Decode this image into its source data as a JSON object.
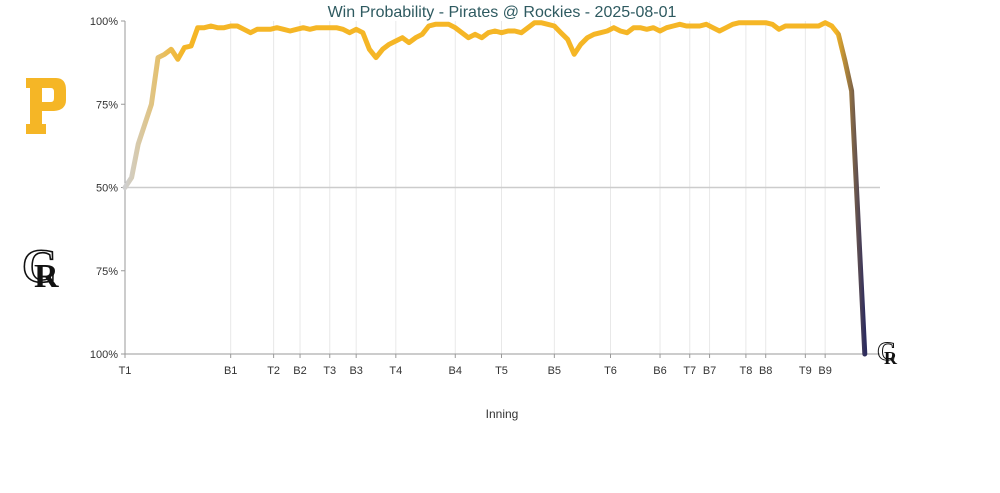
{
  "chart_data": {
    "type": "line",
    "title": "Win Probability - Pirates @ Rockies - 2025-08-01",
    "xlabel": "Inning",
    "ylabel": "",
    "y_axis_labels": [
      "100%",
      "75%",
      "50%",
      "75%",
      "100%"
    ],
    "ylim": [
      -50,
      50
    ],
    "grid": true,
    "x_ticks": [
      {
        "label": "T1",
        "x": 0
      },
      {
        "label": "B1",
        "x": 16
      },
      {
        "label": "T2",
        "x": 22.5
      },
      {
        "label": "B2",
        "x": 26.5
      },
      {
        "label": "T3",
        "x": 31
      },
      {
        "label": "B3",
        "x": 35
      },
      {
        "label": "T4",
        "x": 41
      },
      {
        "label": "B4",
        "x": 50
      },
      {
        "label": "T5",
        "x": 57
      },
      {
        "label": "B5",
        "x": 65
      },
      {
        "label": "T6",
        "x": 73.5
      },
      {
        "label": "B6",
        "x": 81
      },
      {
        "label": "T7",
        "x": 85.5
      },
      {
        "label": "B7",
        "x": 88.5
      },
      {
        "label": "T8",
        "x": 94
      },
      {
        "label": "B8",
        "x": 97
      },
      {
        "label": "T9",
        "x": 103
      },
      {
        "label": "B9",
        "x": 106
      }
    ],
    "x_max": 114,
    "series": [
      {
        "values": [
          [
            0,
            0
          ],
          [
            1,
            3
          ],
          [
            2,
            13
          ],
          [
            3,
            19
          ],
          [
            4,
            25
          ],
          [
            5,
            39
          ],
          [
            6,
            40
          ],
          [
            7,
            41.5
          ],
          [
            8,
            38.5
          ],
          [
            9,
            42
          ],
          [
            10,
            42.5
          ],
          [
            11,
            48
          ],
          [
            12,
            48
          ],
          [
            13,
            48.5
          ],
          [
            14,
            48
          ],
          [
            15,
            48
          ],
          [
            16,
            48.5
          ],
          [
            17,
            48.5
          ],
          [
            18,
            47.5
          ],
          [
            19,
            46.5
          ],
          [
            20,
            47.5
          ],
          [
            21,
            47.5
          ],
          [
            22,
            47.5
          ],
          [
            23,
            48
          ],
          [
            24,
            47.5
          ],
          [
            25,
            47
          ],
          [
            26,
            47.5
          ],
          [
            27,
            48
          ],
          [
            28,
            47.5
          ],
          [
            29,
            48
          ],
          [
            30,
            48
          ],
          [
            31,
            48
          ],
          [
            32,
            48
          ],
          [
            33,
            47.5
          ],
          [
            34,
            46.5
          ],
          [
            35,
            47.5
          ],
          [
            36,
            46.5
          ],
          [
            37,
            41.5
          ],
          [
            38,
            39
          ],
          [
            39,
            41.5
          ],
          [
            40,
            43
          ],
          [
            41,
            44
          ],
          [
            42,
            45
          ],
          [
            43,
            43.5
          ],
          [
            44,
            45
          ],
          [
            45,
            46
          ],
          [
            46,
            48.5
          ],
          [
            47,
            49
          ],
          [
            48,
            49
          ],
          [
            49,
            49
          ],
          [
            50,
            48
          ],
          [
            51,
            46.5
          ],
          [
            52,
            45
          ],
          [
            53,
            46
          ],
          [
            54,
            45
          ],
          [
            55,
            46.5
          ],
          [
            56,
            47
          ],
          [
            57,
            46.5
          ],
          [
            58,
            47
          ],
          [
            59,
            47
          ],
          [
            60,
            46.5
          ],
          [
            61,
            48
          ],
          [
            62,
            49.5
          ],
          [
            63,
            49.5
          ],
          [
            64,
            49
          ],
          [
            65,
            48.5
          ],
          [
            66,
            46.5
          ],
          [
            67,
            44.5
          ],
          [
            68,
            40
          ],
          [
            69,
            43
          ],
          [
            70,
            45
          ],
          [
            71,
            46
          ],
          [
            72,
            46.5
          ],
          [
            73,
            47
          ],
          [
            74,
            48
          ],
          [
            75,
            47
          ],
          [
            76,
            46.5
          ],
          [
            77,
            48
          ],
          [
            78,
            48
          ],
          [
            79,
            47.5
          ],
          [
            80,
            48
          ],
          [
            81,
            47
          ],
          [
            82,
            48
          ],
          [
            83,
            48.5
          ],
          [
            84,
            49
          ],
          [
            85,
            48.5
          ],
          [
            86,
            48.5
          ],
          [
            87,
            48.5
          ],
          [
            88,
            49
          ],
          [
            89,
            48
          ],
          [
            90,
            47
          ],
          [
            91,
            48
          ],
          [
            92,
            49
          ],
          [
            93,
            49.5
          ],
          [
            94,
            49.5
          ],
          [
            95,
            49.5
          ],
          [
            96,
            49.5
          ],
          [
            97,
            49.5
          ],
          [
            98,
            49
          ],
          [
            99,
            47.5
          ],
          [
            100,
            48.5
          ],
          [
            101,
            48.5
          ],
          [
            102,
            48.5
          ],
          [
            103,
            48.5
          ],
          [
            104,
            48.5
          ],
          [
            105,
            48.5
          ],
          [
            106,
            49.5
          ],
          [
            107,
            48.5
          ],
          [
            108,
            46
          ],
          [
            109,
            38
          ],
          [
            110,
            29
          ],
          [
            112,
            -50
          ]
        ]
      }
    ]
  },
  "colors": {
    "pirates": "#f5b626",
    "rockies": "#2e2d5e",
    "start": "#cfcfcf",
    "axis": "#999999",
    "grid": "#e8e8e8",
    "midline": "#cccccc"
  },
  "logos": {
    "top_team": "pirates-logo-icon",
    "bottom_team": "rockies-logo-icon",
    "end_marker": "rockies-logo-icon"
  }
}
